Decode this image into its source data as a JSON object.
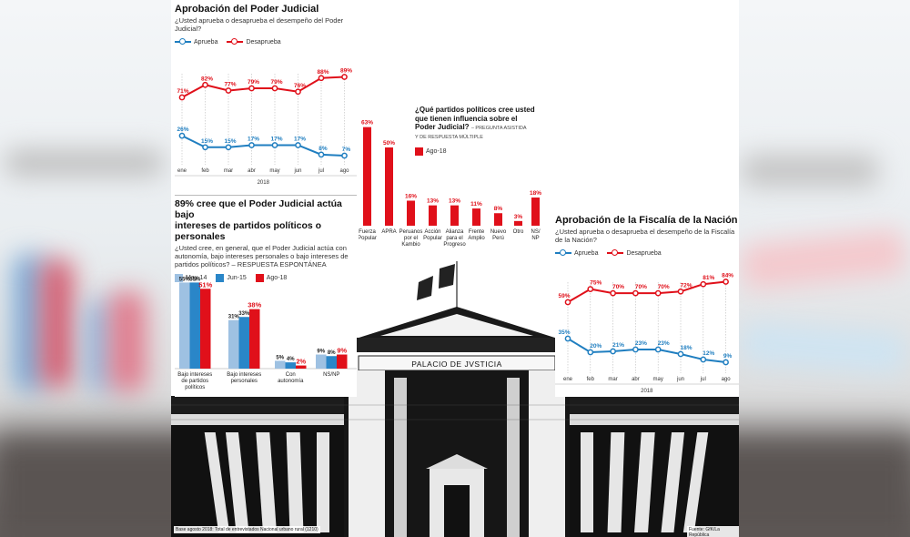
{
  "colors": {
    "red": "#e0101a",
    "blue": "#1f7ec0",
    "light_blue": "#9ec1e2",
    "mid_blue": "#2a86c8",
    "text": "#111111"
  },
  "poder_judicial": {
    "title": "Aprobación del Poder Judicial",
    "question": "¿Usted aprueba o desaprueba el desempeño del Poder Judicial?",
    "legend": [
      "Aprueba",
      "Desaprueba"
    ],
    "months": [
      "ene",
      "feb",
      "mar",
      "abr",
      "may",
      "jun",
      "jul",
      "ago"
    ],
    "year": "2018",
    "aprueba": [
      "26%",
      "15%",
      "15%",
      "17%",
      "17%",
      "17%",
      "8%",
      "7%"
    ],
    "desaprueba": [
      "71%",
      "82%",
      "77%",
      "79%",
      "79%",
      "76%",
      "88%",
      "89%"
    ]
  },
  "intereses": {
    "title_line1": "89% cree que el Poder Judicial actúa bajo",
    "title_line2": "intereses de partidos políticos o personales",
    "question": "¿Usted cree, en general, que el Poder Judicial actúa con autonomía, bajo intereses personales o bajo intereses de partidos políticos? – RESPUESTA ESPONTÁNEA",
    "legend": [
      "May-14",
      "Jun-15",
      "Ago-18"
    ],
    "groups": [
      {
        "label1": "Bajo intereses",
        "label2": "de partidos",
        "label3": "políticos",
        "v": [
          "55%",
          "55%",
          "51%"
        ]
      },
      {
        "label1": "Bajo intereses",
        "label2": "personales",
        "label3": "",
        "v": [
          "31%",
          "33%",
          "38%"
        ]
      },
      {
        "label1": "Con",
        "label2": "autonomía",
        "label3": "",
        "v": [
          "5%",
          "4%",
          "2%"
        ]
      },
      {
        "label1": "NS/NP",
        "label2": "",
        "label3": "",
        "v": [
          "9%",
          "8%",
          "9%"
        ]
      }
    ]
  },
  "partidos": {
    "title_line1": "¿Qué partidos políticos cree usted",
    "title_line2": "que tienen influencia sobre el",
    "title_line3": "Poder Judicial?",
    "subtitle_a": "– PREGUNTA ASISTIDA",
    "subtitle_b": "Y DE RESPUESTA MÚLTIPLE",
    "legend": "Ago-18",
    "bars": [
      {
        "l1": "Fuerza",
        "l2": "Popular",
        "l3": "",
        "l4": "",
        "v": "63%"
      },
      {
        "l1": "APRA",
        "l2": "",
        "l3": "",
        "l4": "",
        "v": "50%"
      },
      {
        "l1": "Peruanos",
        "l2": "por el",
        "l3": "Kambio",
        "l4": "",
        "v": "16%"
      },
      {
        "l1": "Acción",
        "l2": "Popular",
        "l3": "",
        "l4": "",
        "v": "13%"
      },
      {
        "l1": "Alianza",
        "l2": "para el",
        "l3": "Progreso",
        "l4": "",
        "v": "13%"
      },
      {
        "l1": "Frente",
        "l2": "Amplio",
        "l3": "",
        "l4": "",
        "v": "11%"
      },
      {
        "l1": "Nuevo",
        "l2": "Perú",
        "l3": "",
        "l4": "",
        "v": "8%"
      },
      {
        "l1": "Otro",
        "l2": "",
        "l3": "",
        "l4": "",
        "v": "3%"
      },
      {
        "l1": "NS/",
        "l2": "NP",
        "l3": "",
        "l4": "",
        "v": "18%"
      }
    ]
  },
  "fiscalia": {
    "title": "Aprobación de la Fiscalía de la Nación",
    "question": "¿Usted aprueba o desaprueba el desempeño de la Fiscalía de la Nación?",
    "legend": [
      "Aprueba",
      "Desaprueba"
    ],
    "months": [
      "ene",
      "feb",
      "mar",
      "abr",
      "may",
      "jun",
      "jul",
      "ago"
    ],
    "year": "2018",
    "aprueba": [
      "35%",
      "20%",
      "21%",
      "23%",
      "23%",
      "18%",
      "12%",
      "9%"
    ],
    "desaprueba": [
      "59%",
      "75%",
      "70%",
      "70%",
      "70%",
      "72%",
      "81%",
      "84%"
    ]
  },
  "building": {
    "inscription": "PALACIO DE JVSTICIA"
  },
  "footer": {
    "base": "Base agosto 2018: Total de entrevistados Nacional urbano rural (1210)",
    "source": "Fuente: GfK/La República"
  },
  "chart_data": [
    {
      "type": "line",
      "title": "Aprobación del Poder Judicial",
      "subtitle": "¿Usted aprueba o desaprueba el desempeño del Poder Judicial?",
      "categories": [
        "ene",
        "feb",
        "mar",
        "abr",
        "may",
        "jun",
        "jul",
        "ago"
      ],
      "xlabel": "2018",
      "ylabel": "",
      "series": [
        {
          "name": "Aprueba",
          "color": "#1f7ec0",
          "values": [
            26,
            15,
            15,
            17,
            17,
            17,
            8,
            7
          ]
        },
        {
          "name": "Desaprueba",
          "color": "#e0101a",
          "values": [
            71,
            82,
            77,
            79,
            79,
            76,
            88,
            89
          ]
        }
      ],
      "legend_position": "top-left",
      "grid": "vertical dotted"
    },
    {
      "type": "bar",
      "title": "89% cree que el Poder Judicial actúa bajo intereses de partidos políticos o personales",
      "subtitle": "¿Usted cree, en general, que el Poder Judicial actúa con autonomía, bajo intereses personales o bajo intereses de partidos políticos? – RESPUESTA ESPONTÁNEA",
      "categories": [
        "Bajo intereses de partidos políticos",
        "Bajo intereses personales",
        "Con autonomía",
        "NS/NP"
      ],
      "series": [
        {
          "name": "May-14",
          "color": "#9ec1e2",
          "values": [
            55,
            31,
            5,
            9
          ]
        },
        {
          "name": "Jun-15",
          "color": "#2a86c8",
          "values": [
            55,
            33,
            4,
            8
          ]
        },
        {
          "name": "Ago-18",
          "color": "#e0101a",
          "values": [
            51,
            38,
            2,
            9
          ]
        }
      ],
      "legend_position": "top-left"
    },
    {
      "type": "bar",
      "title": "¿Qué partidos políticos cree usted que tienen influencia sobre el Poder Judicial?",
      "subtitle": "PREGUNTA ASISTIDA Y DE RESPUESTA MÚLTIPLE",
      "categories": [
        "Fuerza Popular",
        "APRA",
        "Peruanos por el Kambio",
        "Acción Popular",
        "Alianza para el Progreso",
        "Frente Amplio",
        "Nuevo Perú",
        "Otro",
        "NS/NP"
      ],
      "series": [
        {
          "name": "Ago-18",
          "color": "#e0101a",
          "values": [
            63,
            50,
            16,
            13,
            13,
            11,
            8,
            3,
            18
          ]
        }
      ]
    },
    {
      "type": "line",
      "title": "Aprobación de la Fiscalía de la Nación",
      "subtitle": "¿Usted aprueba o desaprueba el desempeño de la Fiscalía de la Nación?",
      "categories": [
        "ene",
        "feb",
        "mar",
        "abr",
        "may",
        "jun",
        "jul",
        "ago"
      ],
      "xlabel": "2018",
      "series": [
        {
          "name": "Aprueba",
          "color": "#1f7ec0",
          "values": [
            35,
            20,
            21,
            23,
            23,
            18,
            12,
            9
          ]
        },
        {
          "name": "Desaprueba",
          "color": "#e0101a",
          "values": [
            59,
            75,
            70,
            70,
            70,
            72,
            81,
            84
          ]
        }
      ],
      "legend_position": "top-left",
      "grid": "vertical dotted"
    }
  ]
}
